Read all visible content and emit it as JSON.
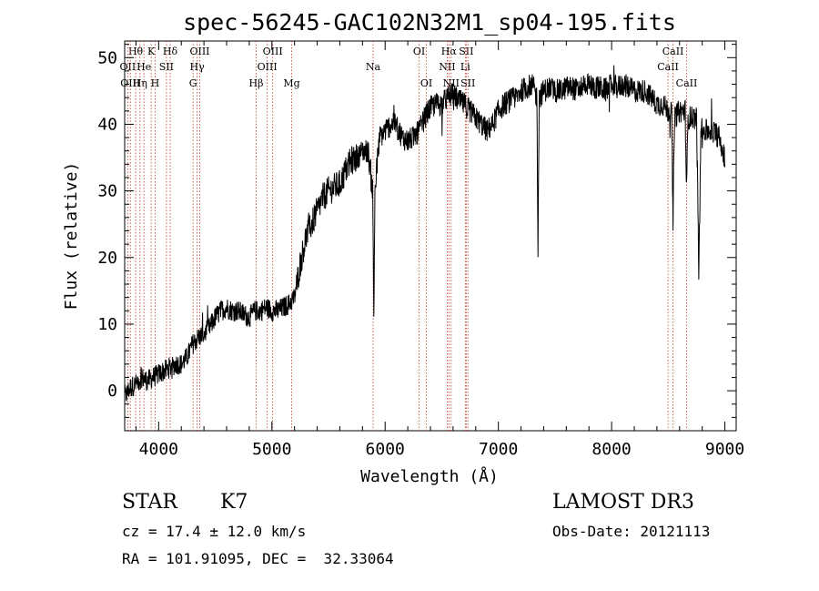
{
  "chart_data": {
    "type": "line",
    "title": "spec-56245-GAC102N32M1_sp04-195.fits",
    "xlabel": "Wavelength (Å)",
    "ylabel": "Flux (relative)",
    "xlim": [
      3700,
      9100
    ],
    "ylim": [
      -6,
      52.5
    ],
    "xticks": [
      4000,
      5000,
      6000,
      7000,
      8000,
      9000
    ],
    "yticks": [
      0,
      10,
      20,
      30,
      40,
      50
    ],
    "series": [
      {
        "name": "spectrum",
        "x": [
          3700,
          3750,
          3800,
          3850,
          3900,
          3950,
          4000,
          4050,
          4100,
          4150,
          4200,
          4250,
          4300,
          4350,
          4400,
          4450,
          4500,
          4550,
          4600,
          4650,
          4700,
          4750,
          4800,
          4850,
          4900,
          4950,
          5000,
          5050,
          5100,
          5150,
          5200,
          5250,
          5300,
          5350,
          5400,
          5450,
          5500,
          5550,
          5600,
          5650,
          5700,
          5750,
          5800,
          5850,
          5890,
          5900,
          5910,
          5950,
          6000,
          6050,
          6100,
          6150,
          6200,
          6250,
          6300,
          6350,
          6400,
          6450,
          6500,
          6550,
          6600,
          6650,
          6700,
          6750,
          6800,
          6850,
          6900,
          6950,
          7000,
          7050,
          7100,
          7150,
          7200,
          7250,
          7300,
          7340,
          7350,
          7360,
          7400,
          7450,
          7500,
          7550,
          7600,
          7650,
          7700,
          7750,
          7800,
          7850,
          7900,
          7950,
          8000,
          8050,
          8100,
          8150,
          8200,
          8250,
          8300,
          8350,
          8400,
          8450,
          8500,
          8530,
          8542,
          8555,
          8600,
          8650,
          8662,
          8675,
          8700,
          8750,
          8770,
          8790,
          8800,
          8850,
          8900,
          8950,
          9000
        ],
        "y": [
          -1,
          0.5,
          1,
          2,
          1.5,
          2,
          2.5,
          3,
          3.5,
          4,
          4,
          5,
          7,
          8,
          8.5,
          9.5,
          11,
          12,
          12.5,
          12,
          12,
          11.5,
          11,
          12,
          12,
          12.5,
          12,
          12,
          12.5,
          13,
          14,
          19,
          23,
          25,
          27,
          29,
          30,
          30.5,
          31,
          33,
          34.5,
          35,
          36,
          36,
          30,
          11,
          30,
          38,
          39,
          40,
          40,
          38,
          37.5,
          38,
          39,
          41,
          42.5,
          43,
          43,
          44,
          44.5,
          43.5,
          43,
          42,
          41,
          40,
          39,
          40,
          42,
          43,
          43.5,
          44,
          45,
          45.5,
          46,
          44,
          22,
          44,
          45,
          45.5,
          45,
          45,
          45.5,
          45.5,
          45,
          46,
          46,
          45.5,
          45.5,
          45,
          46,
          45.5,
          46,
          45.5,
          45,
          45,
          45,
          44,
          43,
          43,
          42,
          42,
          25,
          41,
          42,
          42,
          30,
          41,
          41,
          41,
          18,
          40,
          39,
          39,
          39,
          38,
          35
        ]
      }
    ],
    "lines": [
      {
        "label": "Hθ",
        "x": 3797,
        "row": 1
      },
      {
        "label": "OII",
        "x": 3727,
        "row": 2
      },
      {
        "label": "OIII",
        "x": 3750,
        "row": 3
      },
      {
        "label": "Hη",
        "x": 3835,
        "row": 3
      },
      {
        "label": "He",
        "x": 3870,
        "row": 2
      },
      {
        "label": "K",
        "x": 3934,
        "row": 1
      },
      {
        "label": "H",
        "x": 3969,
        "row": 3
      },
      {
        "label": "SII",
        "x": 4069,
        "row": 2
      },
      {
        "label": "Hδ",
        "x": 4102,
        "row": 1
      },
      {
        "label": "G",
        "x": 4304,
        "row": 3
      },
      {
        "label": "Hγ",
        "x": 4340,
        "row": 2
      },
      {
        "label": "OIII",
        "x": 4363,
        "row": 1
      },
      {
        "label": "Hβ",
        "x": 4861,
        "row": 3
      },
      {
        "label": "OIII",
        "x": 4959,
        "row": 2
      },
      {
        "label": "OIII",
        "x": 5007,
        "row": 1
      },
      {
        "label": "Mg",
        "x": 5175,
        "row": 3
      },
      {
        "label": "Na",
        "x": 5894,
        "row": 2
      },
      {
        "label": "OI",
        "x": 6300,
        "row": 1
      },
      {
        "label": "OI",
        "x": 6364,
        "row": 3
      },
      {
        "label": "NII",
        "x": 6548,
        "row": 2
      },
      {
        "label": "Hα",
        "x": 6563,
        "row": 1
      },
      {
        "label": "NII",
        "x": 6583,
        "row": 3
      },
      {
        "label": "Li",
        "x": 6708,
        "row": 2
      },
      {
        "label": "SII",
        "x": 6716,
        "row": 1
      },
      {
        "label": "SII",
        "x": 6731,
        "row": 3
      },
      {
        "label": "CaII",
        "x": 8498,
        "row": 2
      },
      {
        "label": "CaII",
        "x": 8542,
        "row": 1
      },
      {
        "label": "CaII",
        "x": 8662,
        "row": 3
      }
    ]
  },
  "info": {
    "class": "STAR",
    "subclass": "K7",
    "cz": "cz = 17.4 ± 12.0 km/s",
    "coords": "RA = 101.91095, DEC =  32.33064",
    "survey": "LAMOST DR3",
    "obs_date": "Obs-Date: 20121113"
  },
  "colors": {
    "line_marker": "#c0392b",
    "spectrum": "#000000"
  }
}
